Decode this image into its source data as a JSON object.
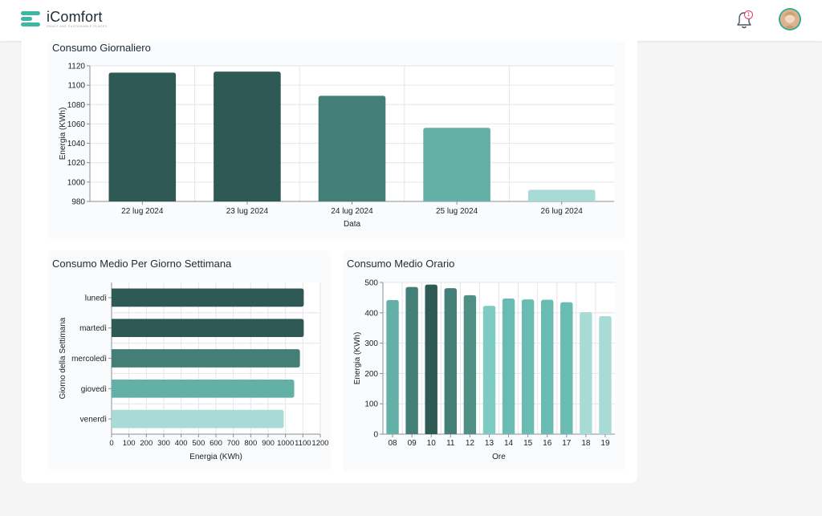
{
  "app": {
    "name": "iComfort",
    "tagline": "SMART AND SUSTAINABLE PLACES",
    "notification_count": "1"
  },
  "colors": {
    "brand": "#3fb6a3",
    "dark": "#2e5955",
    "mid": "#447f77",
    "light": "#62b0a6",
    "lighter": "#a8dbd5"
  },
  "charts": {
    "daily": {
      "title": "Consumo Giornaliero"
    },
    "weekday": {
      "title": "Consumo Medio Per Giorno Settimana"
    },
    "hourly": {
      "title": "Consumo Medio Orario"
    }
  },
  "chart_data": [
    {
      "type": "bar",
      "title": "Consumo Giornaliero",
      "xlabel": "Data",
      "ylabel": "Energia (KWh)",
      "categories": [
        "22 lug 2024",
        "23 lug 2024",
        "24 lug 2024",
        "25 lug 2024",
        "26 lug 2024"
      ],
      "values": [
        1113,
        1114,
        1089,
        1056,
        992
      ],
      "colors": [
        "#2e5955",
        "#2e5955",
        "#447f77",
        "#62b0a6",
        "#a8dbd5"
      ],
      "ylim": [
        980,
        1120
      ],
      "yticks": [
        980,
        1000,
        1020,
        1040,
        1060,
        1080,
        1100,
        1120
      ],
      "grid": true
    },
    {
      "type": "bar",
      "orientation": "horizontal",
      "title": "Consumo Medio Per Giorno Settimana",
      "xlabel": "Energia (KWh)",
      "ylabel": "Giorno della Settimana",
      "categories": [
        "lunedì",
        "martedì",
        "mercoledì",
        "giovedì",
        "venerdì"
      ],
      "values": [
        1105,
        1105,
        1083,
        1050,
        990
      ],
      "colors": [
        "#2e5955",
        "#2e5955",
        "#447f77",
        "#62b0a6",
        "#a8dbd5"
      ],
      "xlim": [
        0,
        1200
      ],
      "xticks": [
        0,
        100,
        200,
        300,
        400,
        500,
        600,
        700,
        800,
        900,
        1000,
        1100,
        1200
      ],
      "grid": true
    },
    {
      "type": "bar",
      "title": "Consumo Medio Orario",
      "xlabel": "Ore",
      "ylabel": "Energia (KWh)",
      "categories": [
        "08",
        "09",
        "10",
        "11",
        "12",
        "13",
        "14",
        "15",
        "16",
        "17",
        "18",
        "19"
      ],
      "values": [
        442,
        485,
        493,
        481,
        458,
        423,
        447,
        444,
        443,
        435,
        402,
        389
      ],
      "colors": [
        "#62b0a6",
        "#447f77",
        "#2e5955",
        "#447f77",
        "#508f86",
        "#7ecbc1",
        "#6abbb1",
        "#6abbb1",
        "#6abbb1",
        "#6abbb1",
        "#a8dbd5",
        "#a8dbd5"
      ],
      "ylim": [
        0,
        500
      ],
      "yticks": [
        0,
        100,
        200,
        300,
        400,
        500
      ],
      "grid": true
    }
  ]
}
